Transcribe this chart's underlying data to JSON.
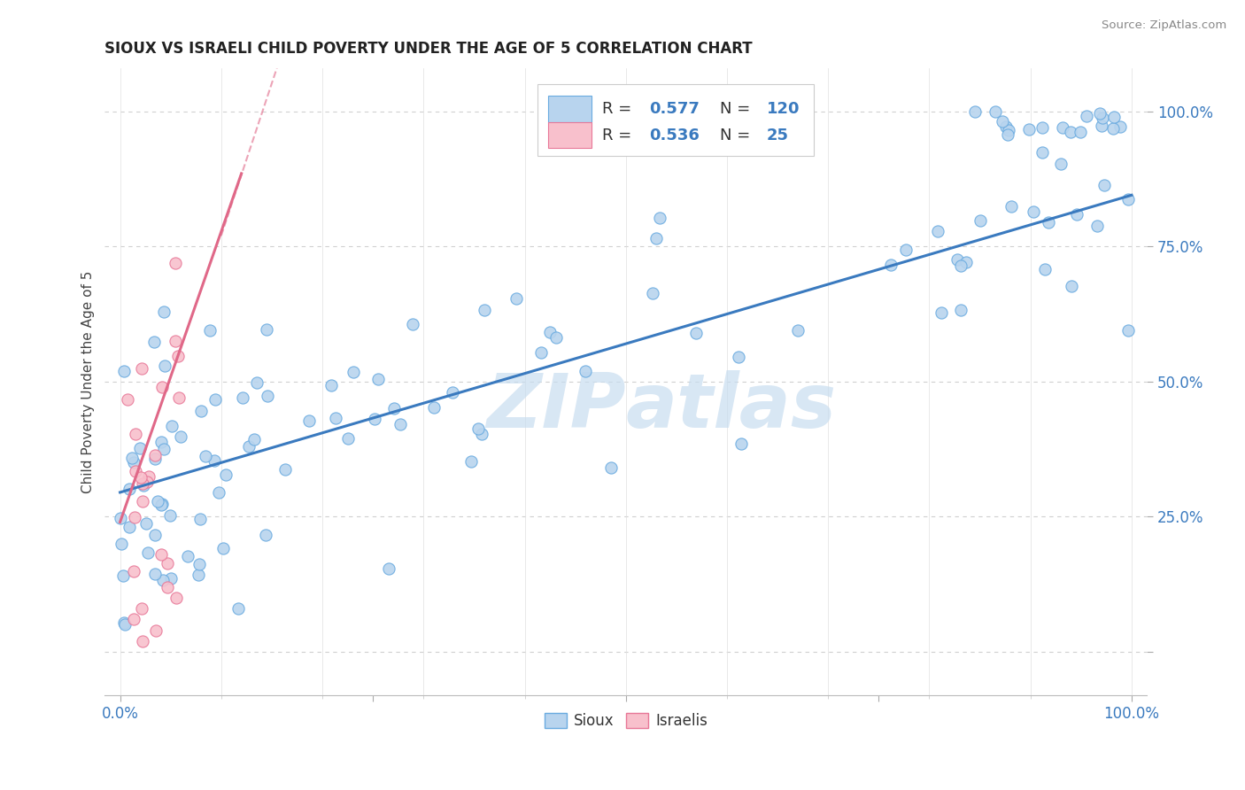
{
  "title": "SIOUX VS ISRAELI CHILD POVERTY UNDER THE AGE OF 5 CORRELATION CHART",
  "source_text": "Source: ZipAtlas.com",
  "ylabel": "Child Poverty Under the Age of 5",
  "sioux_R": "0.577",
  "sioux_N": "120",
  "israeli_R": "0.536",
  "israeli_N": "25",
  "sioux_color": "#b8d4ee",
  "sioux_edge_color": "#6aabe0",
  "israeli_color": "#f8c0cc",
  "israeli_edge_color": "#e87898",
  "sioux_line_color": "#3a7abf",
  "israeli_line_color": "#e06888",
  "watermark_color": "#c8ddf0",
  "legend_R_color": "#3a7abf",
  "background_color": "#ffffff",
  "grid_color": "#e8e8e8",
  "tick_color": "#3a7abf",
  "title_color": "#222222",
  "ylabel_color": "#444444",
  "source_color": "#888888"
}
